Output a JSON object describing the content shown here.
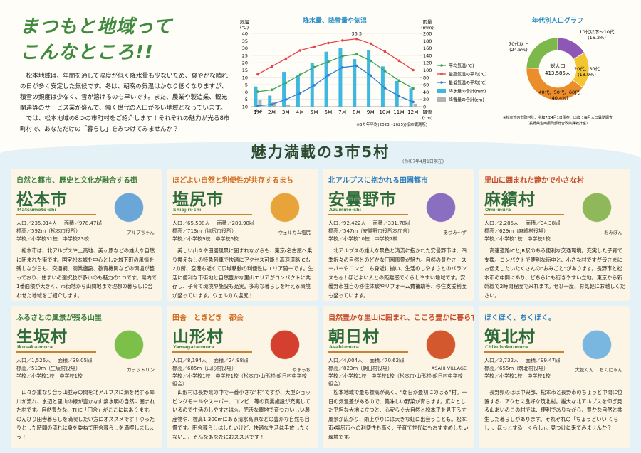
{
  "header": {
    "title_lines": [
      "まつもと地域って",
      "こんなところ!!"
    ],
    "paragraphs": [
      "松本地域は、年間を通して湿度が低く降水量も少ないため、爽やかな晴れの日が多く安定した気候です。冬は、朝晩の気温はかなり低くなりますが、積雪の頻度は少なく、雪が溶けるのも早いです。また、農業や製造業、観光関連等のサービス業が盛んで、働く世代の人口が多い地域となっています。",
      "では、松本地域の8つの市町村をご紹介します！それぞれの魅力が光る8市町村で、あなただけの「暮らし」をみつけてみませんか？"
    ]
  },
  "chart_data": [
    {
      "type": "combo",
      "title": "降水量、降雪量や気温",
      "categories": [
        "1月",
        "2月",
        "3月",
        "4月",
        "5月",
        "6月",
        "7月",
        "8月",
        "9月",
        "10月",
        "11月",
        "12月"
      ],
      "y_label": [
        "気温",
        "(℃)"
      ],
      "y2_label": [
        "雨量",
        "(mm)"
      ],
      "y3_label": [
        "降雪",
        "(cm)"
      ],
      "ylim": [
        -10,
        40
      ],
      "yticks": [
        -10,
        -5,
        0,
        5,
        10,
        15,
        20,
        25,
        30,
        35,
        40
      ],
      "y2lim": [
        0,
        200
      ],
      "y2ticks": [
        0,
        20,
        40,
        60,
        80,
        100,
        120,
        140,
        160,
        180,
        200
      ],
      "grid": true,
      "series": [
        {
          "name": "平均気温(℃)",
          "kind": "line",
          "color": "#3aa65a",
          "values": [
            0.2,
            1.5,
            6.3,
            11.8,
            17.0,
            20.7,
            24.5,
            25.8,
            21.3,
            14.4,
            7.8,
            2.4
          ]
        },
        {
          "name": "最高気温の平均(℃)",
          "kind": "line",
          "color": "#e8434b",
          "label_extreme": "max",
          "values": [
            12.1,
            17.5,
            22.8,
            28.4,
            31.0,
            33.5,
            35.2,
            36.3,
            33.0,
            27.6,
            21.4,
            15.0
          ]
        },
        {
          "name": "最低気温の平均(℃)",
          "kind": "line",
          "color": "#2d7fd0",
          "label_extreme": "min",
          "values": [
            -9.4,
            -8.5,
            -5.1,
            -0.8,
            4.6,
            11.5,
            16.8,
            17.9,
            11.2,
            2.7,
            -2.9,
            -6.8
          ]
        },
        {
          "name": "降水量の合計(mm)",
          "kind": "bar",
          "axis": "y2",
          "color": "#3fb8e0",
          "values": [
            55,
            30,
            95,
            85,
            120,
            150,
            160,
            130,
            155,
            110,
            70,
            50
          ]
        },
        {
          "name": "降雪量の合計(cm)",
          "kind": "bar",
          "axis": "y2",
          "color": "#b3b3b3",
          "values": [
            18,
            12,
            6,
            0,
            0,
            0,
            0,
            0,
            0,
            0,
            2,
            8
          ]
        }
      ],
      "note": "※3カ年平均(2023～2025)(松本観測所)"
    },
    {
      "type": "pie",
      "donut": true,
      "title": "年代別人口グラフ",
      "categories": [
        "10代以下～10代",
        "20代、30代",
        "40代、50代、60代",
        "70代以上"
      ],
      "values": [
        16.2,
        18.9,
        40.4,
        24.5
      ],
      "value_labels": [
        "(16.2%)",
        "(18.9%)",
        "(40.4%)",
        "(24.5%)"
      ],
      "colors": [
        "#8f57b5",
        "#f2c531",
        "#ec8d2c",
        "#7cb94a"
      ],
      "center_label": "総人口",
      "center_value": "413,585人",
      "note": [
        "※松本管内市町村計、令和7年4月1日現在、出典：毎月人口異動調査",
        "（長野県企画振興部総合政策課統計室）"
      ]
    }
  ],
  "section": {
    "title": "魅力満載の3市5村",
    "note": "(令和7年4月1日現在)"
  },
  "cards": [
    {
      "lead": "自然と都市、歴史と文化が融合する街",
      "name": "松本市",
      "roman": "Matsumoto-shi",
      "stats": [
        "人口／235,914人",
        "面積／978.47㎢",
        "標高／592m（松本市役所）",
        "学校／小学校31校　中学校23校"
      ],
      "mascots": [
        "アルプちゃん"
      ],
      "desc": "松本市は、北アルプスや上高地、美ヶ原などの雄大な自然に囲まれた街です。国宝松本城を中心とした城下町の風情を残しながらも、交通網、商業施設、教育機関などの環境が整っており、住まいの選択肢が多いのも魅力の1つです。県内で1番面積が大きく、市街地から山間地まで理想の暮らしに合わせた地域をご紹介します。"
    },
    {
      "lead": "ほどよい自然と利便性が共存するまち",
      "name": "塩尻市",
      "roman": "Shiojiri-shi",
      "stats": [
        "人口／65,508人",
        "面積／289.98㎢",
        "標高／713m（塩尻市役所）",
        "学校／小学校9校　中学校6校"
      ],
      "mascots": [
        "ウェルカム塩尻"
      ],
      "desc": "美しい山々や田園風景に囲まれながらも、東京・名古屋へ乗り換えなしの特急列車で快適にアクセス可能！高速道路ICも2カ所、空港も近くて広域移動の利便性はエリア随一です。生活に便利な市街地と自然豊かな里山エリアがコンパクトに共存し、子育て環境や施設も充実。多彩な暮らしを叶える環境が整っています。ウェルカム塩尻！"
    },
    {
      "lead": "北アルプスに抱かれる田園都市",
      "name": "安曇野市",
      "roman": "Azumino-shi",
      "stats": [
        "人口／92,422人",
        "面積／331.78㎢",
        "標高／547m（安曇野市役所本庁舎）",
        "学校／小学校10校　中学校7校"
      ],
      "mascots": [
        "あづみ～ず"
      ],
      "desc": "北アルプスの雄大な景色と清流に抱かれた安曇野市は、四季折々の自然とのどかな田園風景が魅力。自然の豊かさ＋スーパーやコンビニも身近に揃い、生活のしやすさとのバランスも◎！ほどよい人との距離感でくらしやすい地域です。安曇野市独自の移住体験やリフォーム費補助等、移住支援制度も整っています。"
    },
    {
      "lead": "里山に囲まれた静かで小さな村",
      "name": "麻績村",
      "roman": "Omi-mura",
      "stats": [
        "人口／2,285人",
        "面積／34.38㎢",
        "標高／629m（麻績村役場）",
        "学校／小学校1校　中学校1校"
      ],
      "mascots": [
        "おみぽん"
      ],
      "desc": "高速道路ICとJR駅のある便利な交通環境。充実した子育て支援。コンパクトで便利な街中と、小さな村ですが皆さまにお伝えしたいたくさんの“おみごと”があります。長野市と松本市の中間にあり、どちらにも行きやすい立地。東京から新幹線で2時間程度で来れます。ぜひ一度、お気軽にお越しください。"
    },
    {
      "lead": "ふるさとの風景が残る山里",
      "name": "生坂村",
      "roman": "Ikusaka-mura",
      "stats": [
        "人口／1,526人",
        "面積／39.05㎢",
        "標高／519m（生坂村役場）",
        "学校／小学校1校　中学校1校"
      ],
      "mascots": [
        "カラットリン"
      ],
      "desc": "山々が重なり合う山並みの間を北アルプスに源を発する犀川が流れ、水辺と里山の緑が豊かな山紫水明の自然に囲まれた村です。自然豊かな、THE「田舎」がここにはあります。のんびり田舎暮らしを満喫したい方にオススメです！ゆったりとした時間の流れに身を委ねて田舎暮らしを満喫しましょう！"
    },
    {
      "lead": "田舎　ときどき　都会",
      "name": "山形村",
      "roman": "Yamagata-mura",
      "stats": [
        "人口／8,194人",
        "面積／24.98㎢",
        "標高／685m（山形村役場）",
        "学校／小学校1校　中学校1校（松本市・山形村・朝日村中学校組合）"
      ],
      "mascots": [
        "やまっち"
      ],
      "desc": "山形村は長野県の中で一番小さな“村”ですが、大型ショッピングモールやスーパー、コンビニ等の商業施設が充実しているので生活のしやすさは◎。肥沃な農地で育つおいしい農産物や、標高1,300mにある清水高原などの豊かな自然も自慢です。田舎暮らしはしたいけど、快適な生活は手放したくない…、そんなあなたにおススメです！"
    },
    {
      "lead": "自然豊かな里山に囲まれ、こころ豊かに暮らす",
      "name": "朝日村",
      "roman": "Asahi-mura",
      "stats": [
        "人口／4,004人",
        "面積／70.62㎢",
        "標高／823m（朝日村役場）",
        "学校／小学校1校　中学校1校（松本市・山形村・朝日村中学校組合）"
      ],
      "mascots": [
        "ASAHI VILLAGE"
      ],
      "desc": "松本地域で最も標高が高く、“朝日が最初にのぼる”村。一日の気温差があるので、美味しい野菜が育ちます。広々とした平坦な大地に立つと、心安らぐ大自然と松本平を見下ろす風景が広がり、雨上がりには大きな虹に出会うことも。松本市・塩尻市への利便性も高く、子育て世代にもおすすめしたい環境です。"
    },
    {
      "lead": "ほくほく、ちくほく。",
      "name": "筑北村",
      "roman": "Chikuhoku-mura",
      "stats": [
        "人口／3,732人",
        "面積／99.47㎢",
        "標高／655m（筑北村役場）",
        "学校／小学校1校　中学校1校"
      ],
      "mascots": [
        "大蛇くん",
        "ちくにゃん"
      ],
      "desc": "長野県のほぼ中央部、松本市と長野市のちょうど中間に位置する、アクセス良好な筑北村。雄大な北アルプスを仰ぎ見る山あいのこの村では、便利でありながら、豊かな自然と共生した暮らしがあります。それぞれの「ちょうどいい くらし」、ほっとする「くらし」。見つけに来てみませんか？"
    }
  ]
}
